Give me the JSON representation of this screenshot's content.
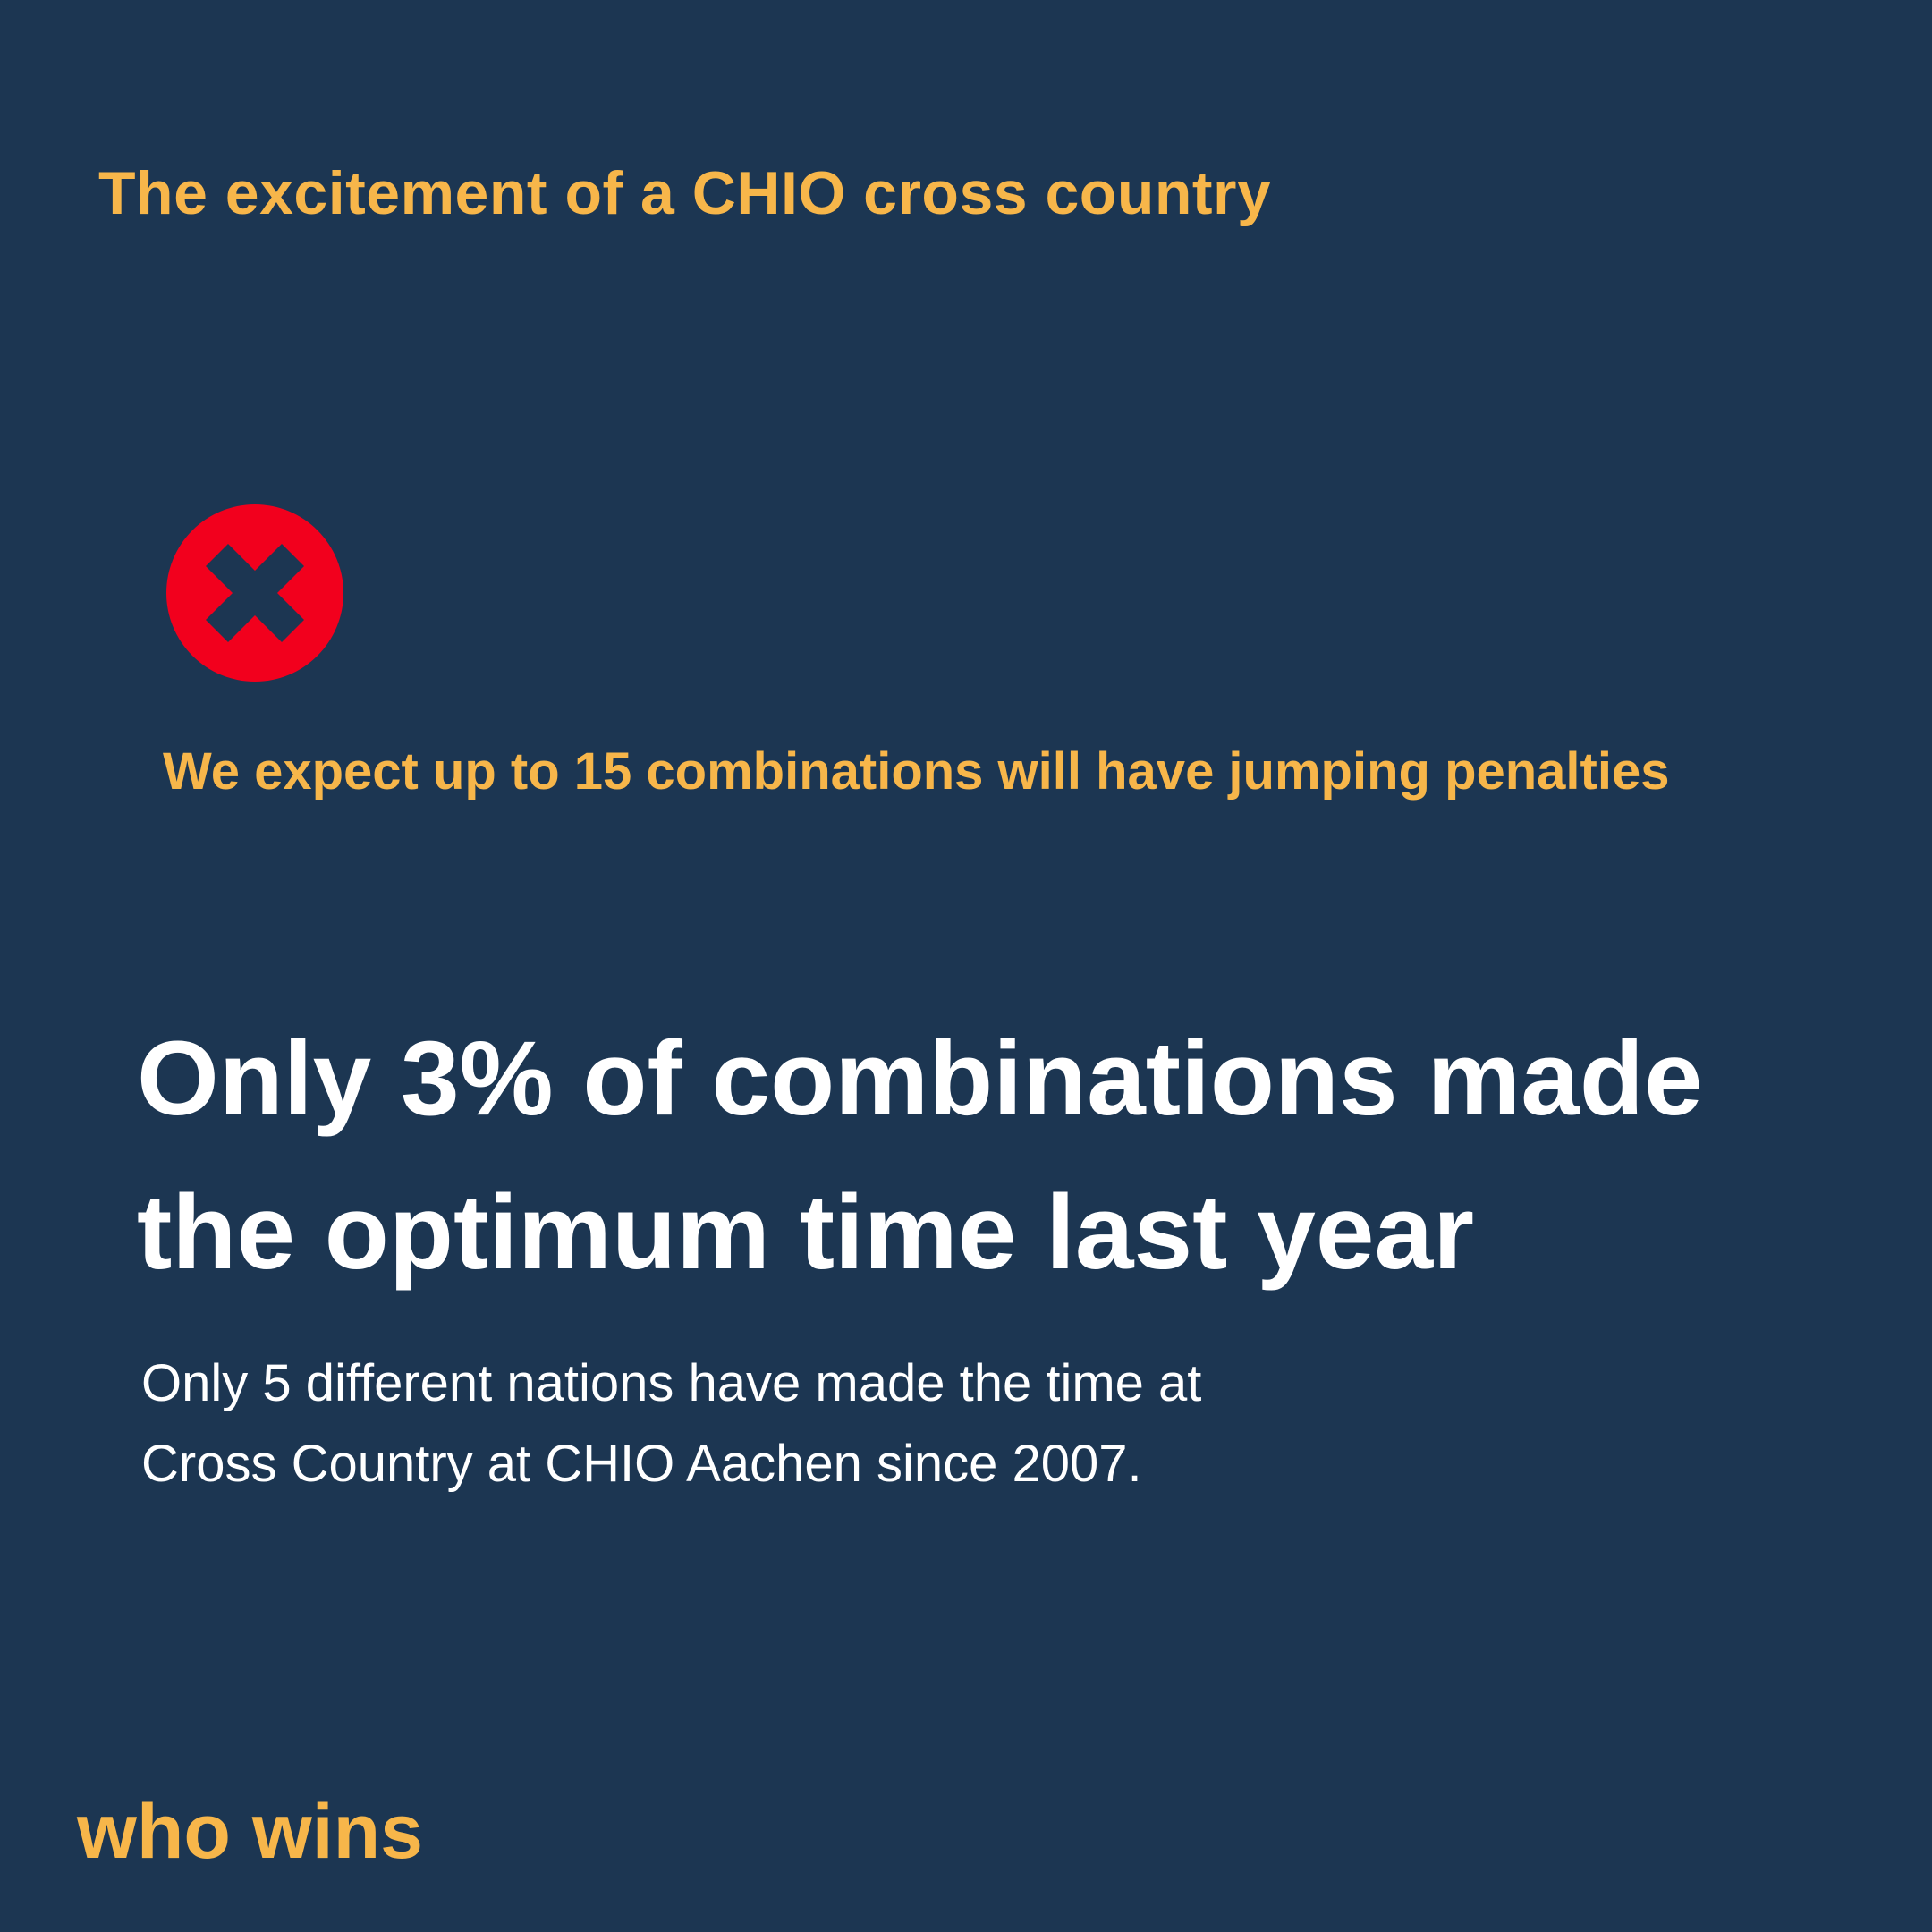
{
  "title": "The excitement of a CHIO cross country",
  "prediction": {
    "icon": "x-circle-icon",
    "text": "We expect up to 15 combinations will have jumping penalties"
  },
  "headline": {
    "line1": "Only 3% of combinations made",
    "line2": "the optimum time last year"
  },
  "subtext": {
    "line1": "Only 5 different nations have made the time at",
    "line2": "Cross Country at CHIO Aachen since 2007."
  },
  "brand": "who wins",
  "colors": {
    "background": "#1c3652",
    "accent": "#f7b64a",
    "alert": "#f2001d",
    "text": "#ffffff"
  }
}
